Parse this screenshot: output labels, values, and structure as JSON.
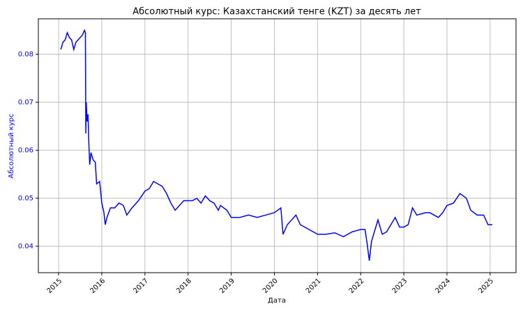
{
  "chart_data": {
    "type": "line",
    "title": "Абсолютный курс: Казахстанский тенге (KZT) за десять лет",
    "xlabel": "Дата",
    "ylabel": "Абсолютный курс",
    "color": "blue",
    "ylabel_color": "blue",
    "grid": true,
    "x": [
      2015.05,
      2015.1,
      2015.15,
      2015.2,
      2015.25,
      2015.3,
      2015.35,
      2015.4,
      2015.45,
      2015.5,
      2015.55,
      2015.6,
      2015.62,
      2015.63,
      2015.64,
      2015.66,
      2015.68,
      2015.7,
      2015.72,
      2015.75,
      2015.8,
      2015.85,
      2015.88,
      2015.95,
      2016.0,
      2016.05,
      2016.08,
      2016.12,
      2016.2,
      2016.3,
      2016.4,
      2016.5,
      2016.58,
      2016.7,
      2016.85,
      2017.0,
      2017.1,
      2017.2,
      2017.3,
      2017.4,
      2017.5,
      2017.6,
      2017.7,
      2017.8,
      2017.9,
      2018.0,
      2018.1,
      2018.2,
      2018.3,
      2018.4,
      2018.5,
      2018.6,
      2018.7,
      2018.75,
      2018.9,
      2019.0,
      2019.2,
      2019.4,
      2019.6,
      2019.8,
      2020.0,
      2020.15,
      2020.2,
      2020.3,
      2020.5,
      2020.6,
      2020.8,
      2021.0,
      2021.2,
      2021.4,
      2021.6,
      2021.8,
      2022.0,
      2022.1,
      2022.15,
      2022.2,
      2022.25,
      2022.4,
      2022.5,
      2022.6,
      2022.7,
      2022.8,
      2022.9,
      2023.0,
      2023.1,
      2023.2,
      2023.3,
      2023.5,
      2023.6,
      2023.7,
      2023.8,
      2023.9,
      2024.0,
      2024.15,
      2024.3,
      2024.45,
      2024.55,
      2024.7,
      2024.85,
      2024.95,
      2025.05
    ],
    "values": [
      0.081,
      0.0825,
      0.083,
      0.0845,
      0.0835,
      0.083,
      0.081,
      0.0825,
      0.083,
      0.0835,
      0.084,
      0.085,
      0.0845,
      0.0635,
      0.07,
      0.066,
      0.0675,
      0.0615,
      0.057,
      0.0595,
      0.058,
      0.0575,
      0.053,
      0.0535,
      0.049,
      0.047,
      0.0445,
      0.046,
      0.048,
      0.048,
      0.049,
      0.0485,
      0.0465,
      0.048,
      0.0495,
      0.0515,
      0.052,
      0.0535,
      0.053,
      0.0525,
      0.051,
      0.049,
      0.0475,
      0.0485,
      0.0495,
      0.0495,
      0.0495,
      0.05,
      0.049,
      0.0505,
      0.0495,
      0.049,
      0.0475,
      0.0485,
      0.0475,
      0.046,
      0.046,
      0.0465,
      0.046,
      0.0465,
      0.047,
      0.048,
      0.0425,
      0.0445,
      0.0465,
      0.0445,
      0.0435,
      0.0425,
      0.0425,
      0.0428,
      0.042,
      0.043,
      0.0435,
      0.0435,
      0.0405,
      0.037,
      0.041,
      0.0455,
      0.0425,
      0.043,
      0.0445,
      0.046,
      0.044,
      0.044,
      0.0445,
      0.048,
      0.0465,
      0.047,
      0.047,
      0.0465,
      0.046,
      0.047,
      0.0485,
      0.049,
      0.051,
      0.05,
      0.0475,
      0.0465,
      0.0465,
      0.0445,
      0.0445
    ],
    "xlim": [
      2014.53,
      2025.6
    ],
    "ylim": [
      0.0345,
      0.0874
    ],
    "xticks": [
      2015,
      2016,
      2017,
      2018,
      2019,
      2020,
      2021,
      2022,
      2023,
      2024,
      2025
    ],
    "yticks": [
      0.04,
      0.05,
      0.06,
      0.07,
      0.08
    ]
  }
}
